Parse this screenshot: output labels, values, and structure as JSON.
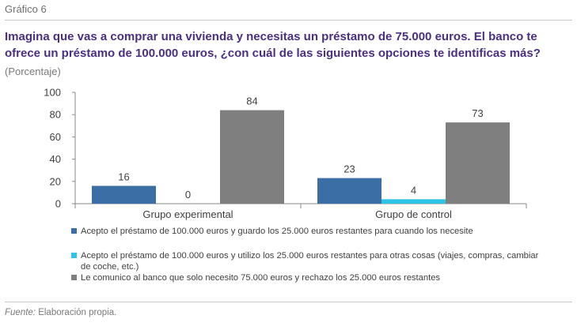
{
  "figure_label": "Gráfico 6",
  "title": "Imagina que vas a comprar una vivienda y necesitas un préstamo de 75.000 euros. El banco te ofrece un préstamo de 100.000 euros, ¿con cuál de las siguientes opciones te identificas más?",
  "subtitle": "(Porcentaje)",
  "source_label": "Fuente:",
  "source_text": " Elaboración propia.",
  "colors": {
    "series1": "#3a6ea5",
    "series2": "#2ec4e6",
    "series3": "#7f7f7f"
  },
  "chart_data": {
    "type": "bar",
    "title": "Imagina que vas a comprar una vivienda y necesitas un préstamo de 75.000 euros. El banco te ofrece un préstamo de 100.000 euros, ¿con cuál de las siguientes opciones te identificas más?",
    "subtitle": "(Porcentaje)",
    "categories": [
      "Grupo experimental",
      "Grupo de control"
    ],
    "series": [
      {
        "name": "Acepto el préstamo de 100.000 euros y guardo los 25.000 euros restantes para cuando los necesite",
        "values": [
          16,
          23
        ],
        "color": "#3a6ea5"
      },
      {
        "name": "Acepto el préstamo de 100.000 euros y utilizo los 25.000 euros restantes para otras cosas (viajes, compras, cambiar de coche, etc.)",
        "values": [
          0,
          4
        ],
        "color": "#2ec4e6"
      },
      {
        "name": "Le comunico al banco que solo necesito 75.000 euros y rechazo los 25.000 euros restantes",
        "values": [
          84,
          73
        ],
        "color": "#7f7f7f"
      }
    ],
    "ylim": [
      0,
      100
    ],
    "yticks": [
      0,
      20,
      40,
      60,
      80,
      100
    ],
    "grid": false,
    "legend": "bottom",
    "xlabel": "",
    "ylabel": ""
  }
}
